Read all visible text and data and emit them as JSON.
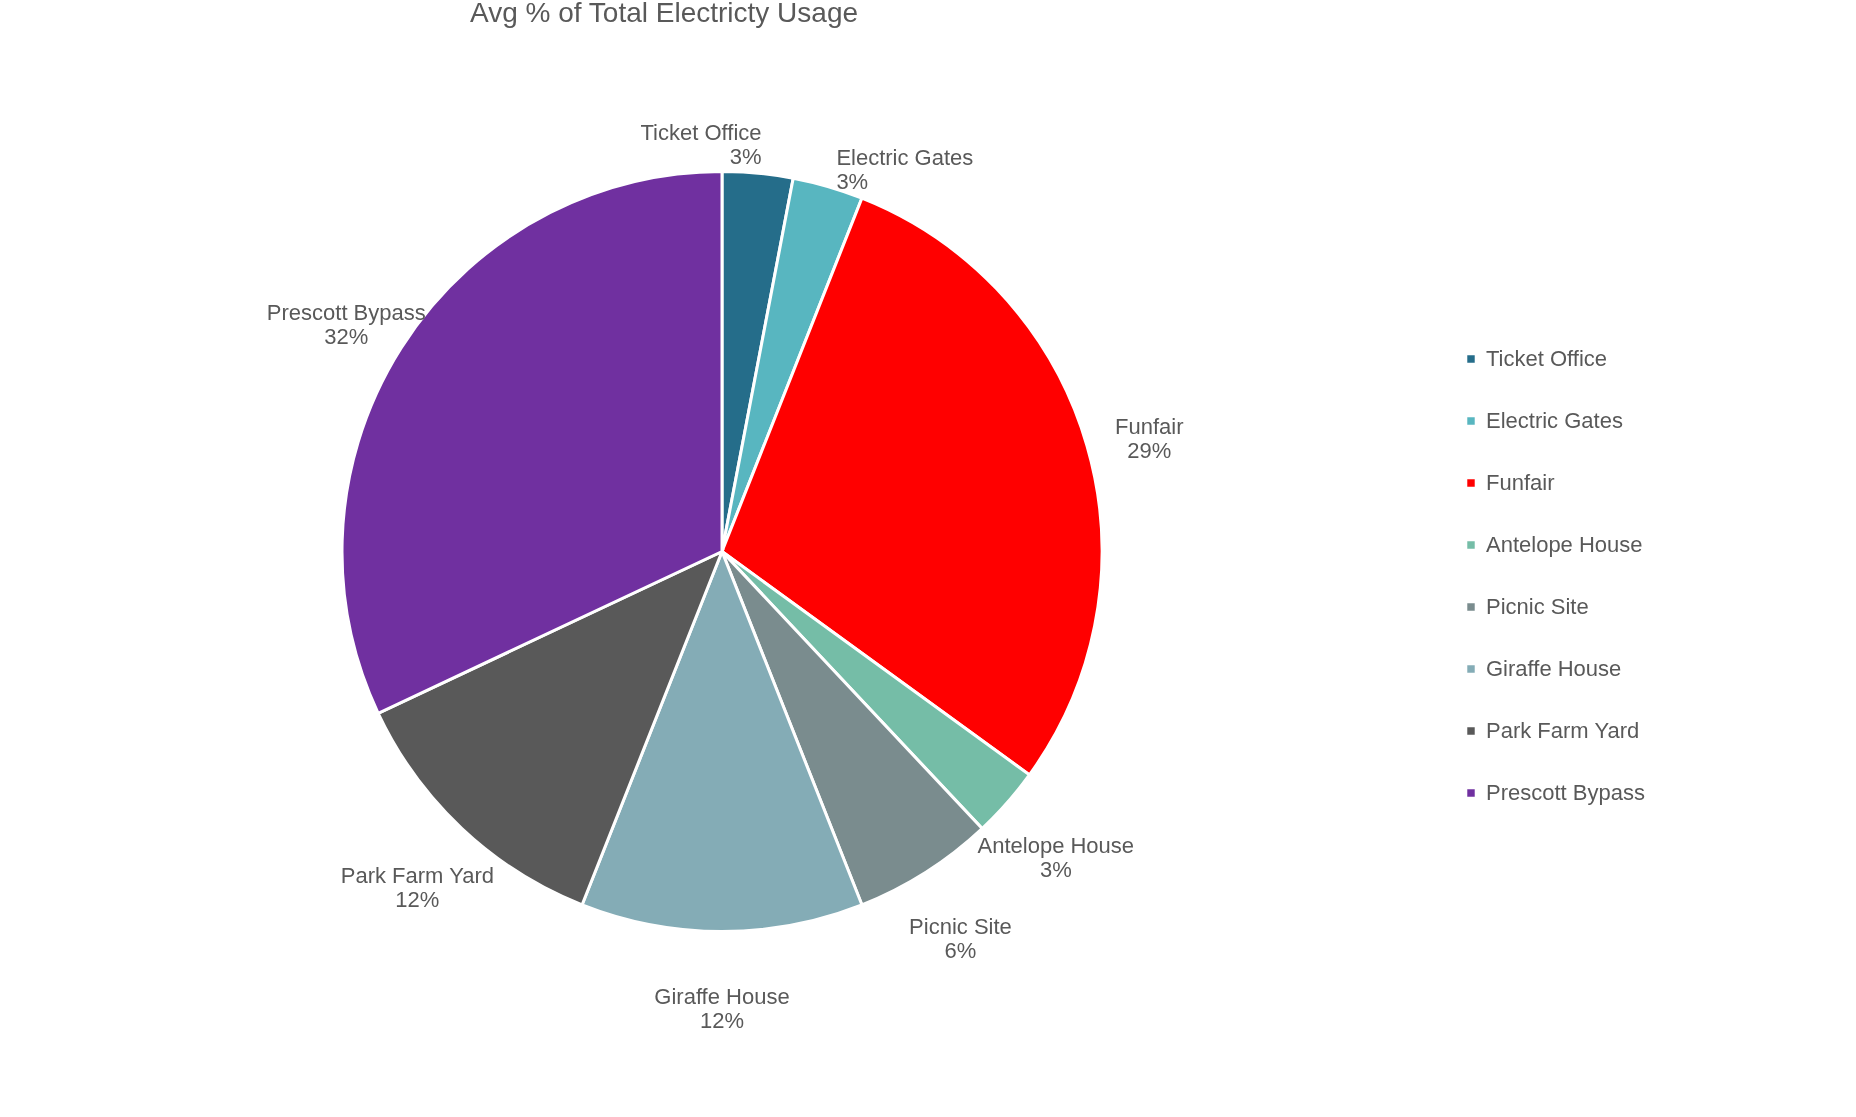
{
  "chart_data": {
    "type": "pie",
    "title": "Avg % of Total Electricty Usage",
    "categories": [
      "Ticket Office",
      "Electric Gates",
      "Funfair",
      "Antelope House",
      "Picnic Site",
      "Giraffe House",
      "Park Farm Yard",
      "Prescott Bypass"
    ],
    "values": [
      3,
      3,
      29,
      3,
      6,
      12,
      12,
      32
    ],
    "value_labels": [
      "3%",
      "3%",
      "29%",
      "3%",
      "6%",
      "12%",
      "12%",
      "32%"
    ],
    "colors": [
      "#256d8a",
      "#58b6c0",
      "#ff0000",
      "#75bda7",
      "#7a8c8e",
      "#84acb6",
      "#595959",
      "#7030a0"
    ],
    "legend": "right"
  }
}
